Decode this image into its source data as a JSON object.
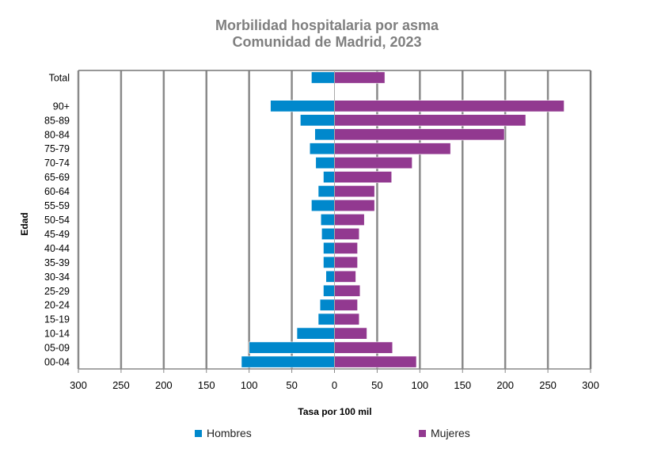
{
  "chart_data": {
    "type": "bar",
    "orientation": "horizontal",
    "layout": "population-pyramid",
    "title": "Morbilidad hospitalaria por asma",
    "subtitle": "Comunidad de Madrid, 2023",
    "xlabel": "Tasa por 100 mil",
    "ylabel": "Edad",
    "xlim": [
      -300,
      300
    ],
    "x_tick_labels": [
      "300",
      "250",
      "200",
      "150",
      "100",
      "50",
      "0",
      "50",
      "100",
      "150",
      "200",
      "250",
      "300"
    ],
    "grid": true,
    "legend_position": "bottom",
    "categories": [
      "Total",
      "",
      "90+",
      "85-89",
      "80-84",
      "75-79",
      "70-74",
      "65-69",
      "60-64",
      "55-59",
      "50-54",
      "45-49",
      "40-44",
      "35-39",
      "30-34",
      "25-29",
      "20-24",
      "15-19",
      "10-14",
      "05-09",
      "00-04"
    ],
    "series": [
      {
        "name": "Hombres",
        "color": "#0088cc",
        "side": "left",
        "values": [
          27,
          null,
          75,
          40,
          23,
          29,
          22,
          13,
          19,
          27,
          16,
          15,
          13,
          13,
          10,
          13,
          17,
          19,
          44,
          100,
          109
        ]
      },
      {
        "name": "Mujeres",
        "color": "#923990",
        "side": "right",
        "values": [
          59,
          null,
          269,
          224,
          199,
          136,
          91,
          67,
          47,
          47,
          35,
          29,
          27,
          27,
          25,
          30,
          27,
          29,
          38,
          68,
          96
        ]
      }
    ]
  }
}
